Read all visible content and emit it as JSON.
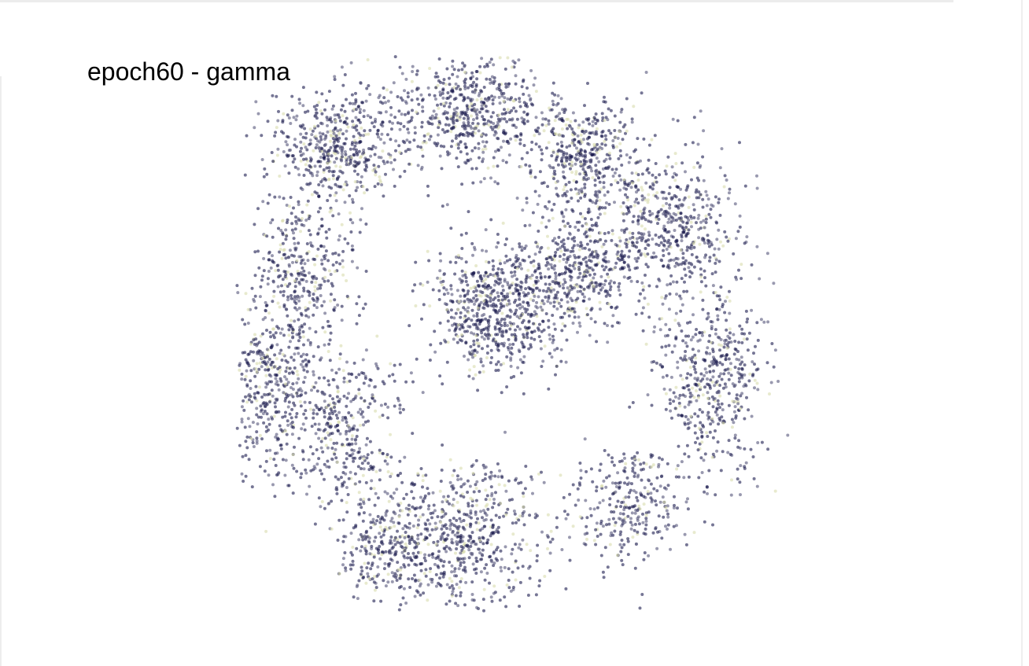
{
  "chart_data": {
    "type": "scatter",
    "title": "epoch60 - gamma",
    "axes_visible": false,
    "grid": false,
    "legend": "none",
    "colors": {
      "dark_point": "#1a1a4e",
      "mid_point": "#55557a",
      "light_point": "#d8dcae",
      "background": "#ffffff"
    },
    "marker_opacity": 0.6,
    "clusters": [
      {
        "name": "top-left",
        "x": 0.18,
        "y": 0.84,
        "sx": 0.06,
        "sy": 0.05,
        "n": 520
      },
      {
        "name": "top-center",
        "x": 0.42,
        "y": 0.9,
        "sx": 0.07,
        "sy": 0.05,
        "n": 600
      },
      {
        "name": "top-right",
        "x": 0.62,
        "y": 0.82,
        "sx": 0.05,
        "sy": 0.05,
        "n": 420
      },
      {
        "name": "upper-right",
        "x": 0.78,
        "y": 0.7,
        "sx": 0.06,
        "sy": 0.07,
        "n": 520
      },
      {
        "name": "mid-left",
        "x": 0.12,
        "y": 0.6,
        "sx": 0.05,
        "sy": 0.07,
        "n": 380
      },
      {
        "name": "center",
        "x": 0.47,
        "y": 0.55,
        "sx": 0.06,
        "sy": 0.06,
        "n": 700
      },
      {
        "name": "center-right",
        "x": 0.62,
        "y": 0.62,
        "sx": 0.05,
        "sy": 0.05,
        "n": 420
      },
      {
        "name": "left",
        "x": 0.06,
        "y": 0.4,
        "sx": 0.04,
        "sy": 0.08,
        "n": 360
      },
      {
        "name": "lower-left",
        "x": 0.2,
        "y": 0.33,
        "sx": 0.06,
        "sy": 0.07,
        "n": 420
      },
      {
        "name": "right",
        "x": 0.85,
        "y": 0.42,
        "sx": 0.05,
        "sy": 0.09,
        "n": 540
      },
      {
        "name": "bottom-center",
        "x": 0.42,
        "y": 0.14,
        "sx": 0.07,
        "sy": 0.07,
        "n": 560
      },
      {
        "name": "bottom-left",
        "x": 0.28,
        "y": 0.12,
        "sx": 0.05,
        "sy": 0.05,
        "n": 320
      },
      {
        "name": "bottom-right",
        "x": 0.7,
        "y": 0.2,
        "sx": 0.05,
        "sy": 0.06,
        "n": 300
      }
    ]
  }
}
